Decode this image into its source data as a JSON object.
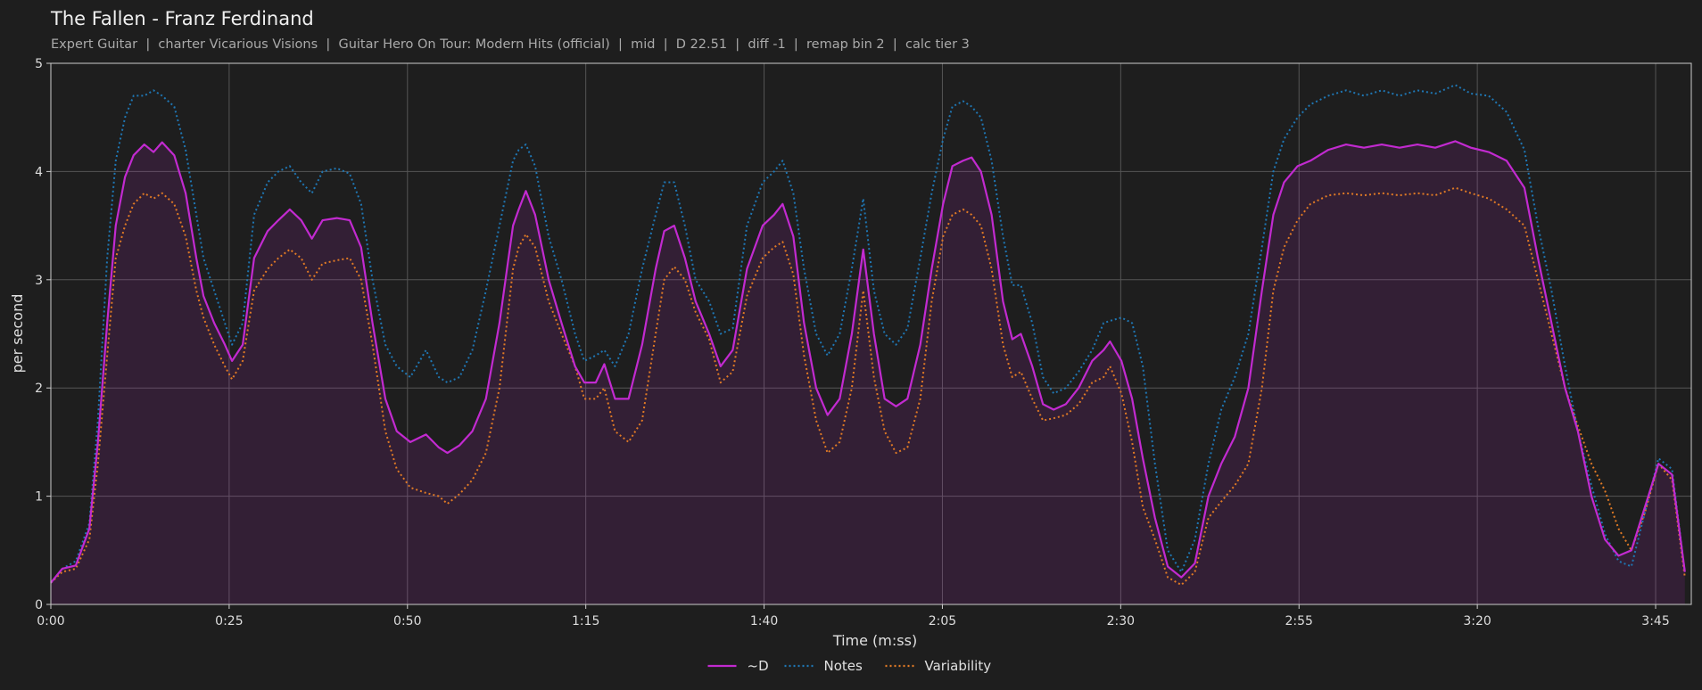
{
  "chart_data": {
    "type": "line",
    "title": "The Fallen - Franz Ferdinand",
    "subtitle": "Expert Guitar  |  charter Vicarious Visions  |  Guitar Hero On Tour: Modern Hits (official)  |  mid  |  D 22.51  |  diff -1  |  remap bin 2  |  calc tier 3",
    "x_label": "Time (m:ss)",
    "y_label": "per second",
    "xlim": [
      0,
      230
    ],
    "ylim": [
      0,
      5
    ],
    "xticks": [
      {
        "value": 0,
        "label": "0:00"
      },
      {
        "value": 25,
        "label": "0:25"
      },
      {
        "value": 50,
        "label": "0:50"
      },
      {
        "value": 75,
        "label": "1:15"
      },
      {
        "value": 100,
        "label": "1:40"
      },
      {
        "value": 125,
        "label": "2:05"
      },
      {
        "value": 150,
        "label": "2:30"
      },
      {
        "value": 175,
        "label": "2:55"
      },
      {
        "value": 200,
        "label": "3:20"
      },
      {
        "value": 225,
        "label": "3:45"
      }
    ],
    "yticks": [
      0,
      1,
      2,
      3,
      4,
      5
    ],
    "grid": true,
    "legend": "bottom",
    "x": [
      0,
      1.6,
      3.5,
      5.4,
      6.6,
      7.9,
      9.1,
      10.4,
      11.6,
      13.1,
      14.4,
      15.6,
      17.3,
      18.9,
      20.4,
      21.4,
      22.9,
      24.4,
      25.4,
      26.9,
      28.5,
      30.4,
      31.9,
      33.5,
      35.1,
      36.6,
      38.1,
      40.1,
      41.9,
      43.5,
      45.1,
      46.9,
      48.5,
      50.4,
      52.6,
      54.4,
      55.6,
      57.3,
      59.1,
      61,
      62.9,
      64.8,
      65.6,
      66.6,
      67.9,
      69.8,
      71.6,
      73.5,
      74.8,
      76.4,
      77.6,
      79.1,
      81,
      82.9,
      84.8,
      86,
      87.4,
      88.9,
      90.4,
      92.3,
      93.9,
      95.6,
      97.6,
      99.8,
      101.4,
      102.6,
      104.1,
      105.6,
      107.3,
      108.9,
      110.6,
      112.3,
      113.9,
      115.4,
      116.9,
      118.5,
      120.1,
      121.9,
      123.5,
      125.1,
      126.4,
      127.9,
      129.1,
      130.4,
      131.9,
      133.5,
      134.8,
      136,
      137.6,
      139.1,
      140.6,
      142.3,
      144.1,
      146,
      147.6,
      148.5,
      150.1,
      151.6,
      153.1,
      154.8,
      156.6,
      158.5,
      160.4,
      162.3,
      164.1,
      166,
      167.9,
      169.8,
      171.4,
      172.9,
      174.8,
      176.6,
      179.1,
      181.6,
      184.1,
      186.6,
      189.1,
      191.6,
      194.1,
      196.9,
      199.1,
      201.6,
      204.1,
      206.6,
      208.5,
      210.4,
      212.3,
      214.1,
      216,
      217.9,
      219.8,
      221.6,
      223.5,
      225.4,
      227.3,
      229.1
    ],
    "series": [
      {
        "name": "~D",
        "color": "#c22ad0",
        "dash": "solid",
        "fill": true,
        "values": [
          0.2,
          0.33,
          0.36,
          0.7,
          1.5,
          2.6,
          3.5,
          3.95,
          4.15,
          4.25,
          4.18,
          4.27,
          4.15,
          3.8,
          3.2,
          2.85,
          2.6,
          2.4,
          2.25,
          2.4,
          3.2,
          3.45,
          3.55,
          3.65,
          3.55,
          3.38,
          3.55,
          3.57,
          3.55,
          3.3,
          2.6,
          1.9,
          1.6,
          1.5,
          1.57,
          1.45,
          1.4,
          1.47,
          1.6,
          1.9,
          2.6,
          3.5,
          3.65,
          3.82,
          3.6,
          3.0,
          2.6,
          2.2,
          2.05,
          2.05,
          2.22,
          1.9,
          1.9,
          2.4,
          3.1,
          3.45,
          3.5,
          3.2,
          2.8,
          2.5,
          2.2,
          2.35,
          3.1,
          3.5,
          3.6,
          3.7,
          3.4,
          2.6,
          2.0,
          1.75,
          1.9,
          2.5,
          3.28,
          2.5,
          1.9,
          1.83,
          1.9,
          2.4,
          3.1,
          3.7,
          4.05,
          4.1,
          4.13,
          4.0,
          3.6,
          2.8,
          2.45,
          2.5,
          2.2,
          1.85,
          1.8,
          1.85,
          2.0,
          2.25,
          2.35,
          2.43,
          2.25,
          1.9,
          1.35,
          0.8,
          0.35,
          0.25,
          0.38,
          1.0,
          1.3,
          1.55,
          2.0,
          2.9,
          3.6,
          3.9,
          4.05,
          4.1,
          4.2,
          4.25,
          4.22,
          4.25,
          4.22,
          4.25,
          4.22,
          4.28,
          4.22,
          4.18,
          4.1,
          3.85,
          3.2,
          2.6,
          2.0,
          1.6,
          1.0,
          0.6,
          0.45,
          0.5,
          0.9,
          1.3,
          1.2,
          0.3
        ]
      },
      {
        "name": "Notes",
        "color": "#1f77b4",
        "dash": "dotted",
        "fill": false,
        "values": [
          0.2,
          0.33,
          0.4,
          0.75,
          1.7,
          3.2,
          4.1,
          4.5,
          4.7,
          4.7,
          4.75,
          4.7,
          4.6,
          4.2,
          3.6,
          3.2,
          2.9,
          2.6,
          2.4,
          2.6,
          3.6,
          3.9,
          4.0,
          4.05,
          3.9,
          3.8,
          4.0,
          4.03,
          3.98,
          3.7,
          3.0,
          2.4,
          2.2,
          2.1,
          2.35,
          2.1,
          2.05,
          2.1,
          2.35,
          2.9,
          3.5,
          4.1,
          4.2,
          4.25,
          4.05,
          3.4,
          3.0,
          2.5,
          2.25,
          2.3,
          2.35,
          2.2,
          2.5,
          3.1,
          3.6,
          3.9,
          3.9,
          3.5,
          3.0,
          2.8,
          2.5,
          2.55,
          3.5,
          3.9,
          4.0,
          4.1,
          3.8,
          3.1,
          2.5,
          2.3,
          2.5,
          3.1,
          3.75,
          2.9,
          2.5,
          2.4,
          2.55,
          3.2,
          3.8,
          4.3,
          4.6,
          4.65,
          4.6,
          4.5,
          4.1,
          3.4,
          2.95,
          2.95,
          2.6,
          2.1,
          1.95,
          2.0,
          2.15,
          2.35,
          2.6,
          2.62,
          2.65,
          2.6,
          2.2,
          1.3,
          0.5,
          0.3,
          0.6,
          1.3,
          1.8,
          2.1,
          2.5,
          3.3,
          4.0,
          4.3,
          4.5,
          4.62,
          4.7,
          4.75,
          4.7,
          4.75,
          4.7,
          4.75,
          4.72,
          4.8,
          4.72,
          4.7,
          4.55,
          4.2,
          3.5,
          2.9,
          2.2,
          1.6,
          1.1,
          0.65,
          0.4,
          0.35,
          0.85,
          1.35,
          1.25,
          0.3
        ]
      },
      {
        "name": "Variability",
        "color": "#e07a25",
        "dash": "dotted",
        "fill": false,
        "values": [
          0.2,
          0.3,
          0.33,
          0.6,
          1.3,
          2.3,
          3.2,
          3.5,
          3.7,
          3.8,
          3.75,
          3.8,
          3.7,
          3.4,
          2.9,
          2.65,
          2.4,
          2.2,
          2.08,
          2.25,
          2.9,
          3.1,
          3.2,
          3.28,
          3.2,
          3.0,
          3.15,
          3.18,
          3.2,
          3.0,
          2.4,
          1.6,
          1.25,
          1.08,
          1.03,
          1.0,
          0.93,
          1.02,
          1.15,
          1.4,
          2.0,
          3.1,
          3.3,
          3.42,
          3.3,
          2.8,
          2.5,
          2.2,
          1.9,
          1.9,
          2.0,
          1.6,
          1.5,
          1.7,
          2.5,
          3.0,
          3.12,
          3.0,
          2.7,
          2.45,
          2.05,
          2.15,
          2.85,
          3.2,
          3.3,
          3.35,
          3.05,
          2.3,
          1.7,
          1.4,
          1.5,
          2.0,
          2.9,
          2.1,
          1.6,
          1.4,
          1.45,
          1.9,
          2.8,
          3.4,
          3.6,
          3.65,
          3.6,
          3.5,
          3.1,
          2.4,
          2.1,
          2.15,
          1.9,
          1.7,
          1.72,
          1.75,
          1.85,
          2.05,
          2.1,
          2.2,
          1.95,
          1.5,
          0.9,
          0.6,
          0.25,
          0.18,
          0.3,
          0.8,
          0.95,
          1.1,
          1.3,
          2.0,
          2.9,
          3.3,
          3.55,
          3.7,
          3.78,
          3.8,
          3.78,
          3.8,
          3.78,
          3.8,
          3.78,
          3.85,
          3.8,
          3.75,
          3.65,
          3.5,
          3.0,
          2.5,
          2.0,
          1.65,
          1.3,
          1.05,
          0.7,
          0.5,
          0.85,
          1.3,
          1.15,
          0.25
        ]
      }
    ]
  }
}
